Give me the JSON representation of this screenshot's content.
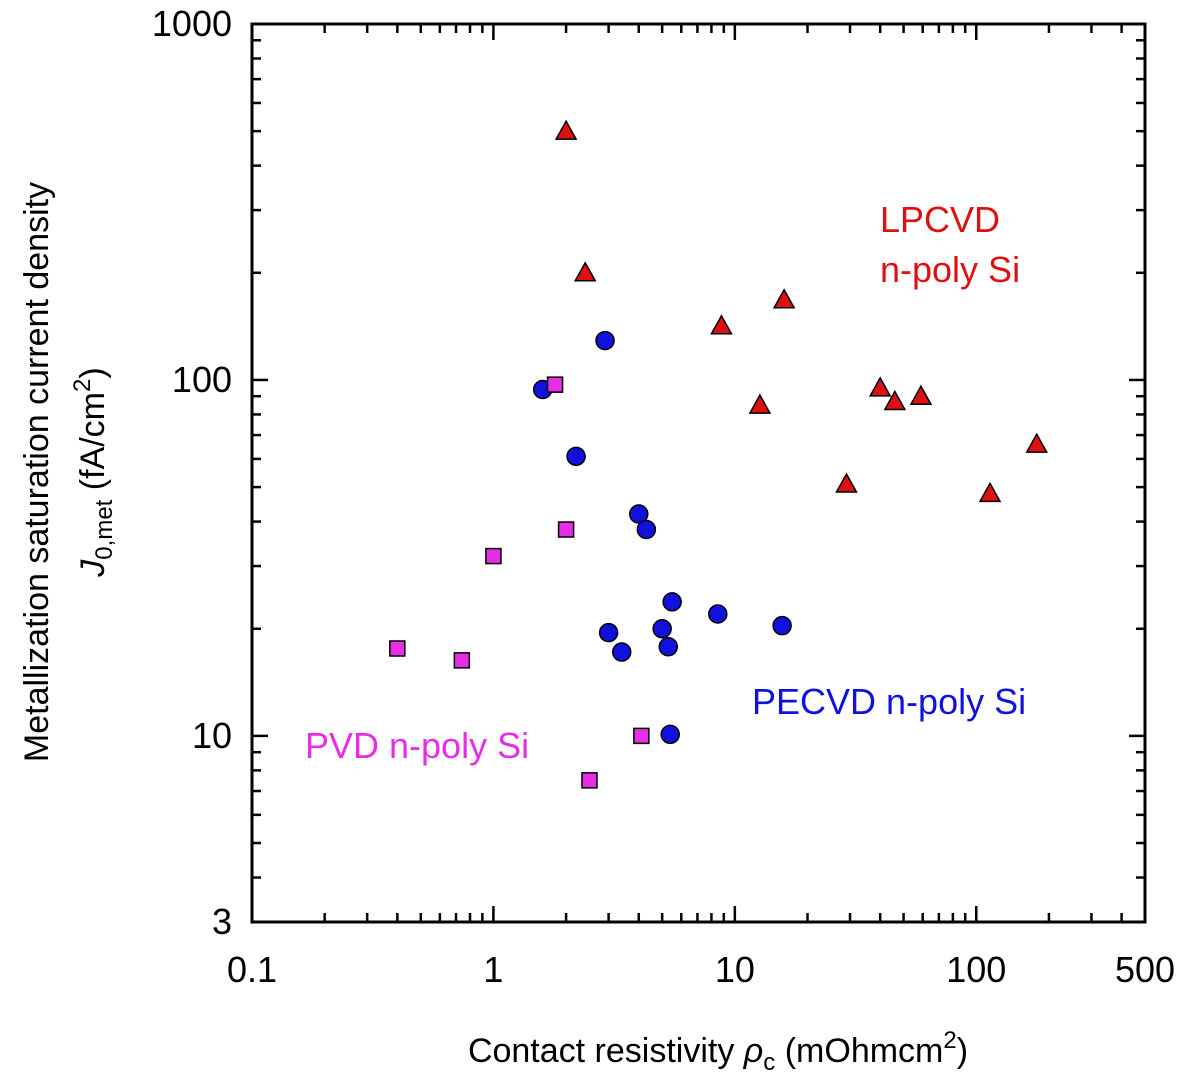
{
  "chart_data": {
    "type": "scatter",
    "x_scale": "log",
    "y_scale": "log",
    "xlim": [
      0.1,
      500
    ],
    "ylim": [
      3,
      1000
    ],
    "x_tick_labels": [
      "0.1",
      "1",
      "10",
      "100",
      "500"
    ],
    "y_tick_labels": [
      "3",
      "10",
      "100",
      "1000"
    ],
    "xlabel": {
      "text": "Contact resistivity ",
      "symbol": "ρ",
      "symbol_sub": "c",
      "unit": " (mOhmcm",
      "unit_sup": "2",
      "unit_close": ")"
    },
    "ylabel": {
      "line1": "Metallization saturation current density",
      "symbol": "J",
      "symbol_sub": "0,met",
      "unit": " (fA/cm",
      "unit_sup": "2",
      "unit_close": ")"
    },
    "grid": false,
    "series": [
      {
        "name": "LPCVD n-poly Si",
        "label_lines": [
          "LPCVD",
          "n-poly Si"
        ],
        "marker": "triangle",
        "color": "#dd1111",
        "points": [
          {
            "x": 2.0,
            "y": 500
          },
          {
            "x": 2.4,
            "y": 200
          },
          {
            "x": 8.8,
            "y": 142
          },
          {
            "x": 16,
            "y": 168
          },
          {
            "x": 12.7,
            "y": 85
          },
          {
            "x": 29,
            "y": 51
          },
          {
            "x": 40,
            "y": 95
          },
          {
            "x": 46,
            "y": 87
          },
          {
            "x": 59,
            "y": 90
          },
          {
            "x": 114,
            "y": 48
          },
          {
            "x": 178,
            "y": 66
          }
        ]
      },
      {
        "name": "PECVD n-poly Si",
        "label_lines": [
          "PECVD n-poly Si"
        ],
        "marker": "circle",
        "color": "#1111dd",
        "points": [
          {
            "x": 1.6,
            "y": 94
          },
          {
            "x": 2.9,
            "y": 129
          },
          {
            "x": 2.2,
            "y": 61
          },
          {
            "x": 4.0,
            "y": 42
          },
          {
            "x": 4.3,
            "y": 38
          },
          {
            "x": 3.0,
            "y": 19.5
          },
          {
            "x": 3.4,
            "y": 17.2
          },
          {
            "x": 5.0,
            "y": 20
          },
          {
            "x": 5.3,
            "y": 17.8
          },
          {
            "x": 5.5,
            "y": 23.8
          },
          {
            "x": 8.5,
            "y": 22
          },
          {
            "x": 15.7,
            "y": 20.4
          },
          {
            "x": 5.4,
            "y": 10.1
          }
        ]
      },
      {
        "name": "PVD n-poly Si",
        "label_lines": [
          "PVD n-poly Si"
        ],
        "marker": "square",
        "color": "#e62ee6",
        "points": [
          {
            "x": 1.8,
            "y": 97
          },
          {
            "x": 2.0,
            "y": 38
          },
          {
            "x": 1.0,
            "y": 32
          },
          {
            "x": 0.4,
            "y": 17.6
          },
          {
            "x": 0.74,
            "y": 16.3
          },
          {
            "x": 4.1,
            "y": 10
          },
          {
            "x": 2.5,
            "y": 7.5
          }
        ]
      }
    ]
  }
}
